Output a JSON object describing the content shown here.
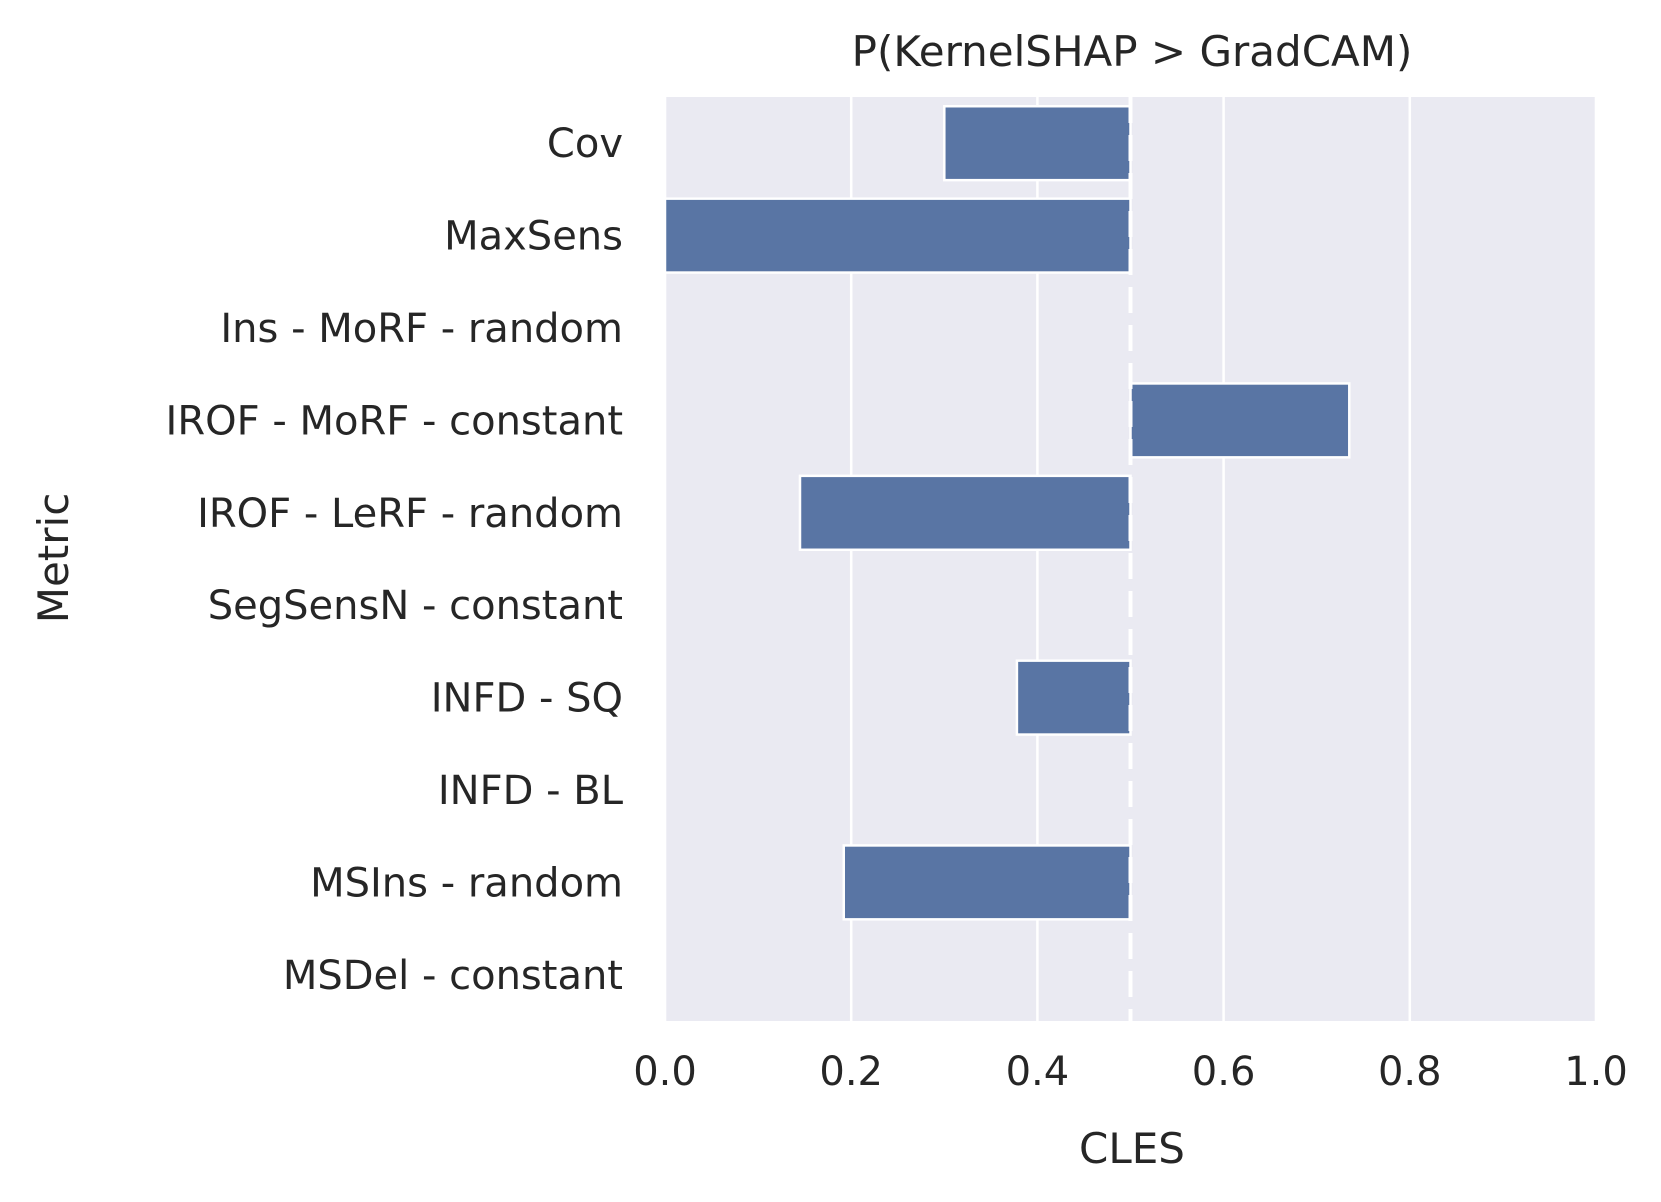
{
  "chart_data": {
    "type": "bar",
    "orientation": "horizontal",
    "title": "P(KernelSHAP > GradCAM)",
    "xlabel": "CLES",
    "ylabel": "Metric",
    "xlim": [
      0.0,
      1.0
    ],
    "xticks": [
      "0.0",
      "0.2",
      "0.4",
      "0.6",
      "0.8",
      "1.0"
    ],
    "reference_line": 0.5,
    "baseline": 0.5,
    "grid": true,
    "bar_color": "#5975a4",
    "background_color": "#eaeaf2",
    "categories": [
      "Cov",
      "MaxSens",
      "Ins - MoRF - random",
      "IROF - MoRF - constant",
      "IROF - LeRF - random",
      "SegSensN - constant",
      "INFD - SQ",
      "INFD - BL",
      "MSIns - random",
      "MSDel - constant"
    ],
    "values": [
      0.3,
      0.0,
      0.5,
      0.735,
      0.145,
      0.5,
      0.378,
      0.5,
      0.192,
      0.5
    ]
  }
}
